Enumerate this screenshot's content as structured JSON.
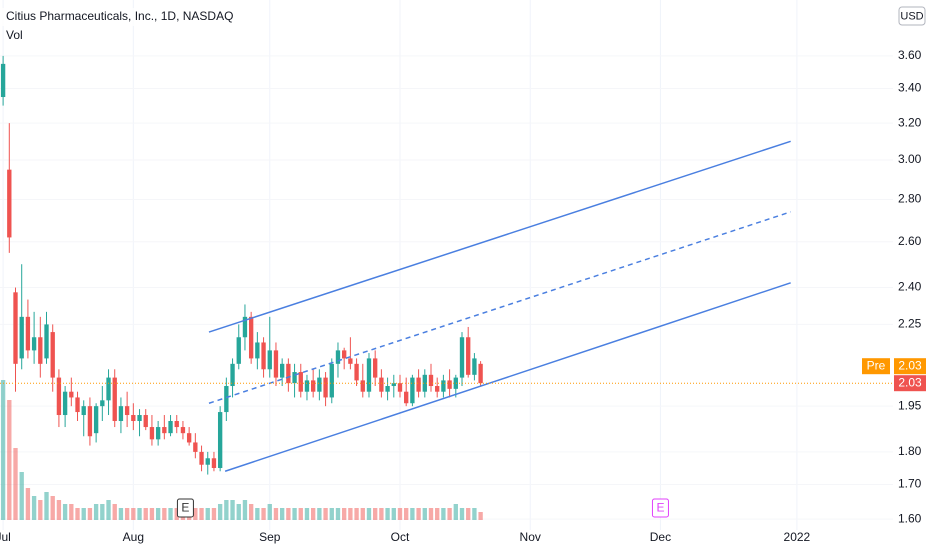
{
  "chart_data": {
    "type": "candlestick",
    "title": "Citius Pharmaceuticals, Inc., 1D, NASDAQ",
    "volume_label": "Vol",
    "currency": "USD",
    "log_scale": true,
    "grid": true,
    "up_color": "#26a69a",
    "down_color": "#ef5350",
    "open": [
      3.35,
      2.95,
      2.38,
      2.12,
      2.28,
      2.15,
      2.2,
      2.12,
      2.22,
      2.05,
      1.92,
      2.0,
      1.98,
      1.92,
      1.95,
      1.86,
      1.95,
      1.97,
      2.05,
      1.9,
      1.95,
      1.92,
      1.9,
      1.92,
      1.88,
      1.84,
      1.88,
      1.86,
      1.9,
      1.88,
      1.86,
      1.83,
      1.8,
      1.76,
      1.78,
      1.75,
      1.93,
      2.02,
      2.1,
      2.2,
      2.28,
      2.12,
      2.18,
      2.08,
      2.15,
      2.05,
      2.1,
      2.03,
      2.07,
      2.0,
      2.04,
      2.0,
      2.05,
      1.98,
      2.1,
      2.15,
      2.12,
      2.1,
      2.04,
      2.0,
      2.12,
      2.05,
      2.0,
      2.02,
      2.03,
      2.0,
      1.96,
      2.05,
      2.0,
      2.06,
      2.02,
      2.0,
      2.04,
      2.01,
      2.05,
      2.2,
      2.06,
      2.1
    ],
    "high": [
      3.6,
      3.2,
      2.4,
      2.5,
      2.35,
      2.3,
      2.28,
      2.3,
      2.25,
      2.08,
      2.02,
      2.05,
      2.0,
      1.97,
      1.98,
      1.96,
      2.02,
      2.08,
      2.08,
      1.98,
      2.0,
      1.96,
      1.94,
      1.94,
      1.92,
      1.9,
      1.92,
      1.92,
      1.92,
      1.9,
      1.88,
      1.86,
      1.82,
      1.8,
      1.8,
      1.95,
      2.05,
      2.12,
      2.25,
      2.33,
      2.3,
      2.22,
      2.2,
      2.28,
      2.18,
      2.12,
      2.12,
      2.1,
      2.1,
      2.06,
      2.08,
      2.08,
      2.07,
      2.12,
      2.18,
      2.16,
      2.2,
      2.12,
      2.1,
      2.14,
      2.15,
      2.08,
      2.05,
      2.06,
      2.06,
      2.05,
      2.06,
      2.08,
      2.08,
      2.1,
      2.05,
      2.06,
      2.08,
      2.06,
      2.22,
      2.24,
      2.14,
      2.11
    ],
    "low": [
      3.3,
      2.55,
      2.0,
      2.08,
      2.12,
      2.1,
      2.05,
      2.1,
      2.0,
      1.88,
      1.88,
      1.95,
      1.9,
      1.85,
      1.82,
      1.83,
      1.9,
      1.92,
      1.88,
      1.86,
      1.88,
      1.87,
      1.85,
      1.87,
      1.82,
      1.82,
      1.84,
      1.85,
      1.86,
      1.84,
      1.82,
      1.78,
      1.74,
      1.73,
      1.74,
      1.74,
      1.9,
      1.98,
      2.08,
      2.15,
      2.1,
      2.08,
      2.05,
      2.05,
      2.02,
      2.02,
      2.0,
      1.98,
      1.98,
      1.97,
      1.98,
      1.97,
      1.95,
      1.96,
      2.05,
      2.08,
      2.08,
      2.02,
      1.98,
      1.98,
      2.02,
      1.98,
      1.97,
      1.98,
      1.98,
      1.95,
      1.95,
      1.98,
      1.98,
      2.0,
      1.98,
      1.98,
      1.98,
      1.98,
      2.02,
      2.05,
      2.04,
      2.02
    ],
    "close": [
      3.55,
      2.62,
      2.1,
      2.28,
      2.15,
      2.2,
      2.1,
      2.25,
      2.05,
      1.92,
      2.0,
      1.98,
      1.93,
      1.95,
      1.85,
      1.95,
      1.97,
      2.05,
      1.9,
      1.95,
      1.92,
      1.9,
      1.92,
      1.88,
      1.84,
      1.88,
      1.86,
      1.9,
      1.88,
      1.86,
      1.83,
      1.8,
      1.76,
      1.78,
      1.75,
      1.93,
      2.02,
      2.1,
      2.2,
      2.28,
      2.12,
      2.18,
      2.08,
      2.15,
      2.05,
      2.1,
      2.03,
      2.07,
      2.0,
      2.04,
      2.0,
      2.05,
      1.98,
      2.1,
      2.15,
      2.12,
      2.1,
      2.04,
      2.0,
      2.12,
      2.05,
      2.0,
      2.02,
      2.03,
      2.0,
      1.96,
      2.05,
      2.0,
      2.06,
      2.02,
      2.0,
      2.04,
      2.01,
      2.05,
      2.2,
      2.06,
      2.12,
      2.03
    ],
    "volume": [
      35,
      30,
      18,
      12,
      8,
      6,
      5,
      7,
      6,
      5,
      4,
      4,
      3,
      3,
      3,
      4,
      4,
      5,
      4,
      3,
      3,
      3,
      3,
      3,
      3,
      3,
      3,
      3,
      3,
      3,
      3,
      3,
      3,
      3,
      3,
      4,
      5,
      5,
      4,
      5,
      4,
      3,
      3,
      4,
      3,
      3,
      3,
      3,
      3,
      3,
      3,
      3,
      3,
      3,
      3,
      3,
      3,
      3,
      3,
      3,
      3,
      3,
      3,
      3,
      3,
      3,
      3,
      3,
      3,
      3,
      3,
      3,
      3,
      4,
      3,
      3,
      3,
      2
    ],
    "vlim": [
      0,
      40
    ],
    "xlim": [
      -0.5,
      143.5
    ],
    "xticks": [
      {
        "value": 0,
        "label": "Jul"
      },
      {
        "value": 21,
        "label": "Aug"
      },
      {
        "value": 43,
        "label": "Sep"
      },
      {
        "value": 64,
        "label": "Oct"
      },
      {
        "value": 85,
        "label": "Nov"
      },
      {
        "value": 106,
        "label": "Dec"
      },
      {
        "value": 128,
        "label": "2022"
      }
    ],
    "ylim": [
      1.57,
      3.97
    ],
    "yticks": [
      {
        "value": 1.6,
        "label": "1.60"
      },
      {
        "value": 1.7,
        "label": "1.70"
      },
      {
        "value": 1.8,
        "label": "1.80"
      },
      1.95,
      2.25,
      {
        "value": 2.4,
        "label": "2.40"
      },
      {
        "value": 2.6,
        "label": "2.60"
      },
      {
        "value": 2.8,
        "label": "2.80"
      },
      {
        "value": 3,
        "label": "3.00"
      },
      {
        "value": 3.2,
        "label": "3.20"
      },
      {
        "value": 3.4,
        "label": "3.40"
      },
      {
        "value": 3.6,
        "label": "3.60"
      }
    ],
    "channel": [
      {
        "x": [
          33.2,
          127
        ],
        "y": [
          2.22,
          3.1
        ],
        "dashed": false
      },
      {
        "x": [
          33.2,
          127
        ],
        "y": [
          1.96,
          2.74
        ],
        "dashed": true
      },
      {
        "x": [
          35.8,
          127
        ],
        "y": [
          1.74,
          2.42
        ],
        "dashed": false
      }
    ],
    "channel_color": "#4a7fe0",
    "last_price": 2.03,
    "premarket": {
      "label": "Pre",
      "value": 2.03
    },
    "events": [
      {
        "x": 29.4,
        "label": "E",
        "color": "#333333"
      },
      {
        "x": 106,
        "label": "E",
        "color": "#e040fb"
      }
    ]
  }
}
